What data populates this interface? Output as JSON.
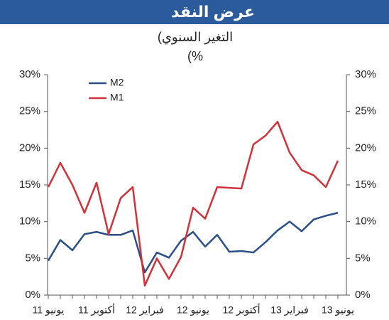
{
  "chart_data": {
    "type": "line",
    "title": "عرض النقد",
    "subtitle": [
      "(التغير السنوي",
      "(%"
    ],
    "categories": [
      "يونيو 11",
      null,
      null,
      null,
      "أكتوبر 11",
      null,
      null,
      null,
      "فبراير 12",
      null,
      null,
      null,
      "يونيو 12",
      null,
      null,
      null,
      "أكتوبر 12",
      null,
      null,
      null,
      "فبراير 13",
      null,
      null,
      null,
      "يونيو 13"
    ],
    "series": [
      {
        "name": "M2",
        "color": "#2b4f85",
        "values": [
          4.7,
          7.5,
          6.1,
          8.3,
          8.6,
          8.2,
          8.2,
          8.8,
          3.1,
          5.8,
          5.1,
          7.4,
          8.6,
          6.6,
          8.2,
          5.9,
          6.0,
          5.8,
          7.2,
          8.8,
          10.0,
          8.7,
          10.3,
          10.8,
          11.2
        ]
      },
      {
        "name": "M1",
        "color": "#d2313a",
        "values": [
          14.7,
          18.0,
          15.0,
          11.2,
          15.3,
          8.3,
          13.2,
          14.7,
          1.3,
          5.0,
          2.2,
          5.2,
          11.9,
          10.4,
          14.7,
          14.6,
          14.5,
          20.5,
          21.7,
          23.6,
          19.4,
          17.0,
          16.3,
          14.7,
          18.3
        ]
      }
    ],
    "ylim": [
      0,
      30
    ],
    "yticks": [
      {
        "value": 0,
        "label": "0%"
      },
      {
        "value": 5,
        "label": "5%"
      },
      {
        "value": 10,
        "label": "10%"
      },
      {
        "value": 15,
        "label": "15%"
      },
      {
        "value": 20,
        "label": "20%"
      },
      {
        "value": 25,
        "label": "25%"
      },
      {
        "value": 30,
        "label": "30%"
      }
    ],
    "y2lim": [
      0,
      30
    ],
    "y2ticks": [
      {
        "value": 0,
        "label": "0%"
      },
      {
        "value": 5,
        "label": "5%"
      },
      {
        "value": 10,
        "label": "10%"
      },
      {
        "value": 15,
        "label": "15%"
      },
      {
        "value": 20,
        "label": "20%"
      },
      {
        "value": 25,
        "label": "25%"
      },
      {
        "value": 30,
        "label": "30%"
      }
    ],
    "legend": "upper-left"
  }
}
